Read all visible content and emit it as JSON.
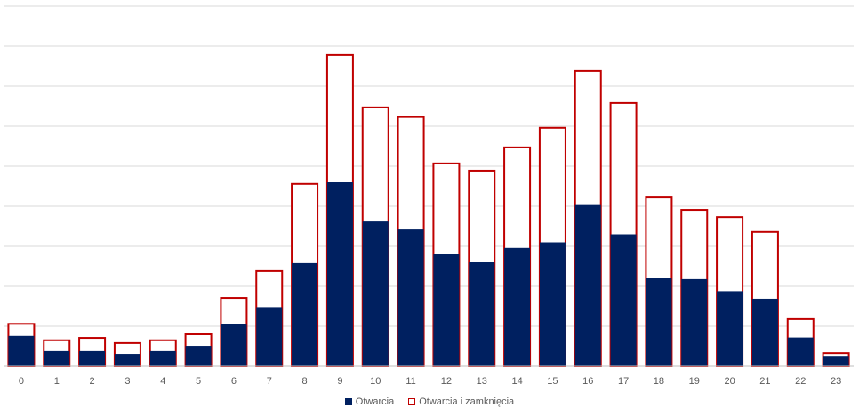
{
  "chart_data": {
    "type": "bar",
    "categories": [
      "0",
      "1",
      "2",
      "3",
      "4",
      "5",
      "6",
      "7",
      "8",
      "9",
      "10",
      "11",
      "12",
      "13",
      "14",
      "15",
      "16",
      "17",
      "18",
      "19",
      "20",
      "21",
      "22",
      "23"
    ],
    "series": [
      {
        "name": "Otwarcia i zamknięcia",
        "style": "outline",
        "color": "#c00000",
        "values": [
          10.6,
          6.5,
          7.1,
          5.8,
          6.5,
          8.0,
          17.1,
          23.8,
          45.6,
          77.8,
          64.7,
          62.3,
          50.7,
          48.9,
          54.7,
          59.6,
          73.8,
          65.8,
          42.2,
          39.1,
          37.3,
          33.6,
          11.8,
          3.3
        ]
      },
      {
        "name": "Otwarcia",
        "style": "fill",
        "color": "#002060",
        "values": [
          7.6,
          3.8,
          3.8,
          3.1,
          3.8,
          5.1,
          10.5,
          14.8,
          25.8,
          46.0,
          36.2,
          34.2,
          28.0,
          26.0,
          29.6,
          31.0,
          40.3,
          33.0,
          22.0,
          21.8,
          18.8,
          16.9,
          7.2,
          2.4
        ]
      }
    ],
    "ylim": [
      0,
      90
    ],
    "grid": true,
    "legend": "bottom",
    "title": "",
    "xlabel": "",
    "ylabel": ""
  }
}
